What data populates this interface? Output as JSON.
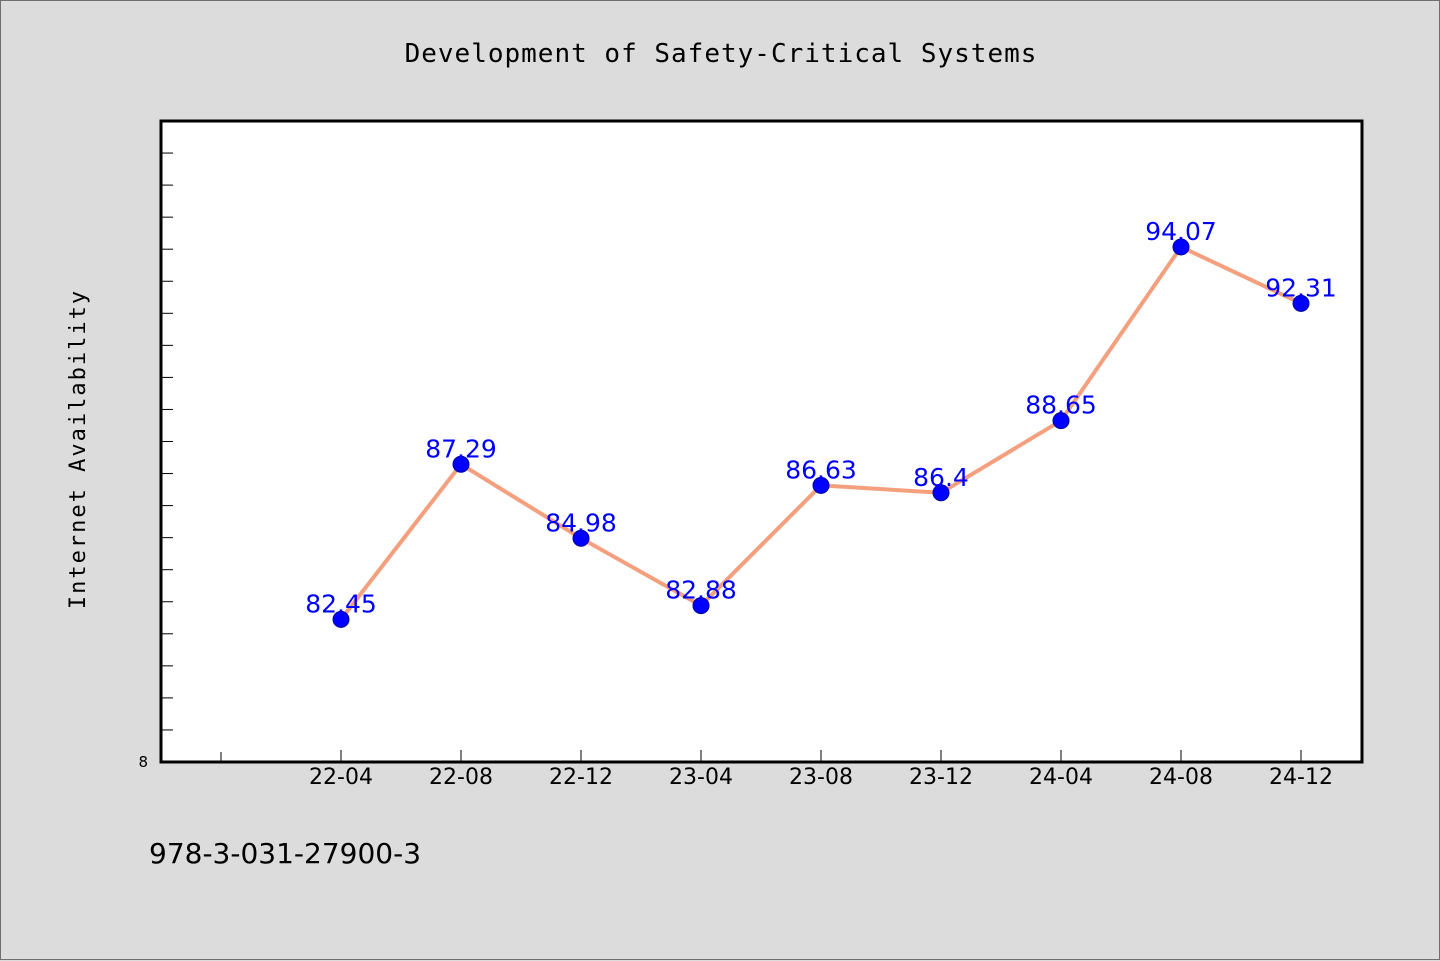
{
  "footer": {
    "isbn": "978-3-031-27900-3"
  },
  "colors": {
    "background": "#dcdcdc",
    "plot_background": "#ffffff",
    "line": "#f4a07e",
    "marker": "#0000ff",
    "data_label": "#0000ff"
  },
  "chart_data": {
    "type": "line",
    "title": "Development of Safety-Critical Systems",
    "xlabel": "",
    "ylabel": "Internet Availability",
    "categories": [
      "22-04",
      "22-08",
      "22-12",
      "23-04",
      "23-08",
      "23-12",
      "24-04",
      "24-08",
      "24-12"
    ],
    "series": [
      {
        "values": [
          82.45,
          87.29,
          84.98,
          82.88,
          86.63,
          86.4,
          88.65,
          94.07,
          92.31
        ],
        "labels": [
          "82.45",
          "87.29",
          "84.98",
          "82.88",
          "86.63",
          "86.4",
          "88.65",
          "94.07",
          "92.31"
        ]
      }
    ],
    "y_tick_label": "8",
    "ylim": [
      78,
      98
    ],
    "y_minor_tick_step": 1,
    "grid": false,
    "legend": "none"
  }
}
